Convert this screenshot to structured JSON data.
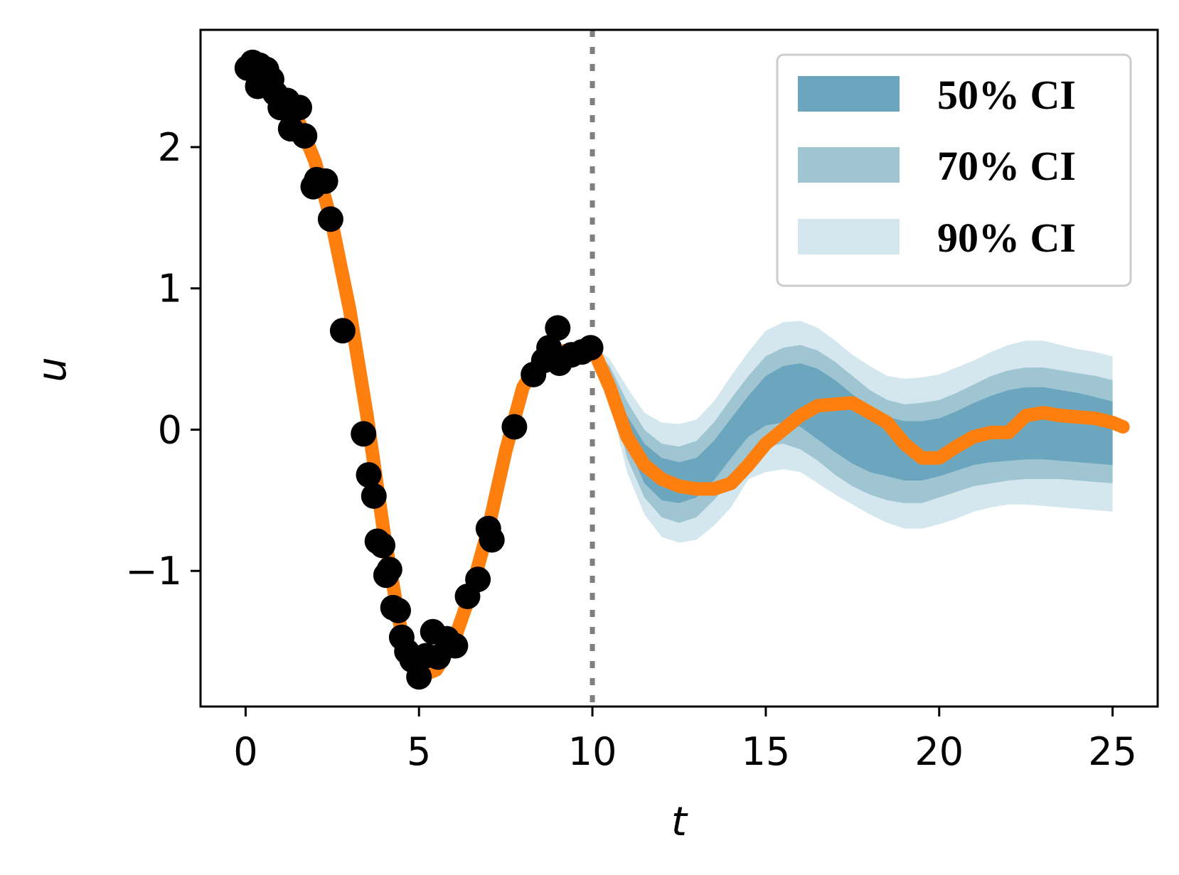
{
  "chart_data": {
    "type": "line",
    "title": "",
    "xlabel": "t",
    "ylabel": "u",
    "xlim": [
      -1.3,
      26.3
    ],
    "ylim": [
      -1.96,
      2.83
    ],
    "x_ticks": [
      0,
      5,
      10,
      15,
      20,
      25
    ],
    "x_tick_labels": [
      "0",
      "5",
      "10",
      "15",
      "20",
      "25"
    ],
    "y_ticks": [
      -1,
      0,
      1,
      2
    ],
    "y_tick_labels": [
      "−1",
      "0",
      "1",
      "2"
    ],
    "grid": false,
    "vline": {
      "x": 10,
      "style": "dotted",
      "color": "#808080"
    },
    "colors": {
      "fit_line": "#ff7f0e",
      "observations": "#000000",
      "ci50": "#6ca5be",
      "ci70": "#9fc5d3",
      "ci90": "#d4e7ee",
      "vline": "#808080"
    },
    "legend": {
      "position": "top-right",
      "entries": [
        {
          "label": "50% CI",
          "color": "#6ca5be"
        },
        {
          "label": "70% CI",
          "color": "#9fc5d3"
        },
        {
          "label": "90% CI",
          "color": "#d4e7ee"
        }
      ]
    },
    "series": [
      {
        "name": "fit",
        "kind": "line",
        "x": [
          0,
          0.5,
          1.0,
          1.5,
          2.0,
          2.5,
          3.0,
          3.5,
          4.0,
          4.5,
          5.0,
          5.5,
          6.0,
          6.5,
          7.0,
          7.5,
          8.0,
          8.5,
          9.0,
          9.5,
          10.0,
          10.5,
          11.0,
          11.5,
          12.0,
          12.5,
          13.0,
          13.5,
          14.0,
          14.5,
          15.0,
          15.5,
          16.0,
          16.5,
          17.0,
          17.5,
          18.0,
          18.5,
          19.0,
          19.5,
          20.0,
          20.5,
          21.0,
          21.5,
          22.0,
          22.5,
          23.0,
          23.5,
          24.0,
          24.5,
          25.0,
          25.3
        ],
        "y": [
          2.58,
          2.5,
          2.38,
          2.2,
          1.9,
          1.45,
          0.85,
          0.1,
          -0.75,
          -1.45,
          -1.75,
          -1.7,
          -1.5,
          -1.15,
          -0.7,
          -0.15,
          0.3,
          0.5,
          0.55,
          0.57,
          0.58,
          0.3,
          -0.05,
          -0.25,
          -0.35,
          -0.4,
          -0.42,
          -0.42,
          -0.38,
          -0.25,
          -0.1,
          0.0,
          0.1,
          0.17,
          0.18,
          0.19,
          0.12,
          0.05,
          -0.1,
          -0.2,
          -0.2,
          -0.12,
          -0.05,
          -0.02,
          -0.02,
          0.1,
          0.12,
          0.1,
          0.09,
          0.08,
          0.05,
          0.02
        ]
      },
      {
        "name": "observations",
        "kind": "scatter",
        "x": [
          0.05,
          0.2,
          0.4,
          0.35,
          0.6,
          0.75,
          0.85,
          1.0,
          1.2,
          1.3,
          1.55,
          1.7,
          1.95,
          2.05,
          2.3,
          2.45,
          2.8,
          3.4,
          3.55,
          3.7,
          3.8,
          3.95,
          4.05,
          4.15,
          4.25,
          4.4,
          4.5,
          4.65,
          4.8,
          5.0,
          5.2,
          5.4,
          5.55,
          5.8,
          6.05,
          6.4,
          6.7,
          7.0,
          7.1,
          7.75,
          8.3,
          8.6,
          8.75,
          9.0,
          9.05,
          9.4,
          9.7,
          9.95
        ],
        "y": [
          2.56,
          2.6,
          2.58,
          2.43,
          2.55,
          2.48,
          2.38,
          2.28,
          2.33,
          2.13,
          2.28,
          2.08,
          1.72,
          1.77,
          1.76,
          1.49,
          0.7,
          -0.03,
          -0.32,
          -0.47,
          -0.79,
          -0.82,
          -1.03,
          -0.99,
          -1.26,
          -1.28,
          -1.47,
          -1.57,
          -1.63,
          -1.75,
          -1.6,
          -1.43,
          -1.61,
          -1.48,
          -1.53,
          -1.18,
          -1.06,
          -0.7,
          -0.78,
          0.02,
          0.39,
          0.49,
          0.58,
          0.72,
          0.47,
          0.53,
          0.55,
          0.58
        ]
      }
    ],
    "bands": [
      {
        "name": "90% CI",
        "x": [
          10.0,
          10.5,
          11.0,
          11.5,
          12.0,
          12.5,
          13.0,
          13.5,
          14.0,
          14.5,
          15.0,
          15.5,
          16.0,
          16.5,
          17.0,
          17.5,
          18.0,
          18.5,
          19.0,
          19.5,
          20.0,
          20.5,
          21.0,
          21.5,
          22.0,
          22.5,
          23.0,
          23.5,
          24.0,
          24.5,
          25.0
        ],
        "lower": [
          0.55,
          0.2,
          -0.3,
          -0.6,
          -0.76,
          -0.8,
          -0.78,
          -0.68,
          -0.55,
          -0.35,
          -0.3,
          -0.28,
          -0.3,
          -0.38,
          -0.46,
          -0.53,
          -0.6,
          -0.66,
          -0.7,
          -0.7,
          -0.67,
          -0.63,
          -0.58,
          -0.55,
          -0.53,
          -0.53,
          -0.54,
          -0.55,
          -0.56,
          -0.57,
          -0.58
        ],
        "upper": [
          0.6,
          0.5,
          0.3,
          0.12,
          0.05,
          0.04,
          0.07,
          0.2,
          0.38,
          0.55,
          0.7,
          0.76,
          0.77,
          0.72,
          0.63,
          0.53,
          0.45,
          0.38,
          0.36,
          0.37,
          0.39,
          0.44,
          0.49,
          0.55,
          0.6,
          0.63,
          0.63,
          0.6,
          0.57,
          0.55,
          0.52
        ]
      },
      {
        "name": "70% CI",
        "x": [
          10.0,
          10.5,
          11.0,
          11.5,
          12.0,
          12.5,
          13.0,
          13.5,
          14.0,
          14.5,
          15.0,
          15.5,
          16.0,
          16.5,
          17.0,
          17.5,
          18.0,
          18.5,
          19.0,
          19.5,
          20.0,
          20.5,
          21.0,
          21.5,
          22.0,
          22.5,
          23.0,
          23.5,
          24.0,
          24.5,
          25.0
        ],
        "lower": [
          0.55,
          0.3,
          -0.2,
          -0.48,
          -0.62,
          -0.66,
          -0.62,
          -0.5,
          -0.36,
          -0.18,
          -0.12,
          -0.1,
          -0.14,
          -0.22,
          -0.32,
          -0.4,
          -0.46,
          -0.5,
          -0.52,
          -0.52,
          -0.48,
          -0.44,
          -0.4,
          -0.38,
          -0.36,
          -0.35,
          -0.35,
          -0.35,
          -0.36,
          -0.37,
          -0.38
        ],
        "upper": [
          0.58,
          0.45,
          0.2,
          0.0,
          -0.1,
          -0.12,
          -0.08,
          0.05,
          0.22,
          0.38,
          0.52,
          0.58,
          0.6,
          0.56,
          0.48,
          0.38,
          0.28,
          0.21,
          0.18,
          0.19,
          0.21,
          0.26,
          0.32,
          0.38,
          0.42,
          0.44,
          0.44,
          0.42,
          0.4,
          0.38,
          0.35
        ]
      },
      {
        "name": "50% CI",
        "x": [
          10.0,
          10.5,
          11.0,
          11.5,
          12.0,
          12.5,
          13.0,
          13.5,
          14.0,
          14.5,
          15.0,
          15.5,
          16.0,
          16.5,
          17.0,
          17.5,
          18.0,
          18.5,
          19.0,
          19.5,
          20.0,
          20.5,
          21.0,
          21.5,
          22.0,
          22.5,
          23.0,
          23.5,
          24.0,
          24.5,
          25.0
        ],
        "lower": [
          0.56,
          0.35,
          -0.1,
          -0.38,
          -0.5,
          -0.52,
          -0.48,
          -0.36,
          -0.2,
          -0.05,
          0.03,
          0.05,
          0.02,
          -0.07,
          -0.16,
          -0.24,
          -0.3,
          -0.33,
          -0.36,
          -0.36,
          -0.33,
          -0.29,
          -0.25,
          -0.23,
          -0.22,
          -0.21,
          -0.21,
          -0.22,
          -0.23,
          -0.24,
          -0.25
        ],
        "upper": [
          0.57,
          0.42,
          0.1,
          -0.1,
          -0.2,
          -0.23,
          -0.2,
          -0.08,
          0.08,
          0.24,
          0.38,
          0.45,
          0.47,
          0.43,
          0.35,
          0.25,
          0.16,
          0.09,
          0.06,
          0.06,
          0.08,
          0.13,
          0.19,
          0.24,
          0.28,
          0.3,
          0.3,
          0.28,
          0.26,
          0.23,
          0.2
        ]
      }
    ]
  }
}
